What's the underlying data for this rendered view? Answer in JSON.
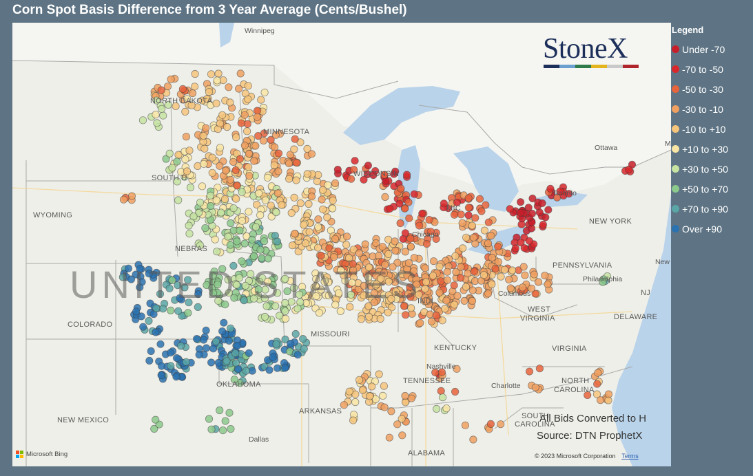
{
  "title": "Corn Spot Basis Difference from 3 Year Average (Cents/Bushel)",
  "logo": {
    "text": "StoneX",
    "bar_colors": [
      "#1c2f5a",
      "#6a9fd0",
      "#2e7a4a",
      "#e4b41e",
      "#c9c9c9",
      "#b0252c"
    ]
  },
  "legend": {
    "title": "Legend",
    "items": [
      {
        "label": "Under -70",
        "color": "#c81e2a"
      },
      {
        "label": "-70 to -50",
        "color": "#d8282c"
      },
      {
        "label": "-50 to -30",
        "color": "#e8643c"
      },
      {
        "label": "-30 to -10",
        "color": "#f0a060"
      },
      {
        "label": "-10 to +10",
        "color": "#f6c57c"
      },
      {
        "label": "+10 to +30",
        "color": "#f9e6a6"
      },
      {
        "label": "+30 to +50",
        "color": "#c6e3a2"
      },
      {
        "label": "+50 to +70",
        "color": "#8cc98c"
      },
      {
        "label": "+70 to +90",
        "color": "#5aa6a6"
      },
      {
        "label": "Over +90",
        "color": "#2a72b0"
      }
    ]
  },
  "map_labels": {
    "winnipeg": "Winnipeg",
    "north_dakota": "NORTH DAKOTA",
    "minnesota": "MINNESOTA",
    "south_dakota": "SOUTH D",
    "wyoming": "WYOMING",
    "nebraska": "NEBRAS",
    "colorado": "COLORADO",
    "new_mexico": "NEW MEXICO",
    "oklahoma": "OKLAHOMA",
    "dallas": "Dallas",
    "arkansas": "ARKANSAS",
    "missouri": "MISSOURI",
    "wisconsin": "WISCONSIN",
    "chicago": "Chicago",
    "michigan": "MIC",
    "toronto": "Toronto",
    "ottawa": "Ottawa",
    "new_york": "NEW YORK",
    "pennsylvania": "PENNSYLVANIA",
    "philadelphia": "Philadelphia",
    "nj": "NJ",
    "delaware": "DELAWARE",
    "columbus": "Columbus",
    "west_virginia_1": "WEST",
    "west_virginia_2": "VIRGINIA",
    "virginia": "VIRGINIA",
    "kentucky": "KENTUCKY",
    "nashville": "Nashville",
    "tennessee": "TENNESSEE",
    "charlotte": "Charlotte",
    "north_carolina_1": "NORTH",
    "north_carolina_2": "CAROLINA",
    "south_carolina_1": "SOUTH",
    "south_carolina_2": "CAROLINA",
    "alabama": "ALABAMA",
    "indiana": "INDI",
    "new_york_city": "New",
    "montreal_frag": "M",
    "country": "UNITED STATES"
  },
  "notes": {
    "line1": "All Bids Converted to H",
    "line2": "Source: DTN ProphetX"
  },
  "attribution": {
    "bing": "Microsoft Bing",
    "copyright": "© 2023 Microsoft Corporation",
    "terms": "Terms"
  }
}
